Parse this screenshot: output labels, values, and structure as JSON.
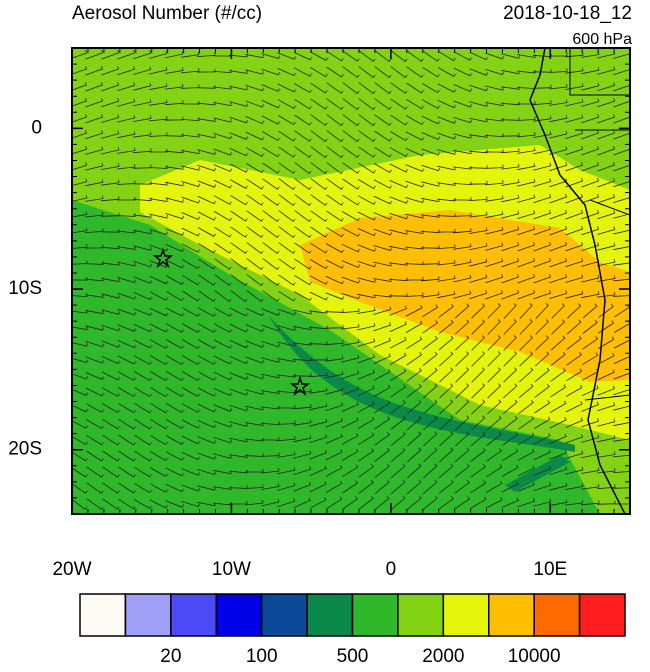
{
  "header": {
    "title": "Aerosol Number (#/cc)",
    "date": "2018-10-18_12",
    "level": "600 hPa"
  },
  "map": {
    "lonlim": [
      -20,
      15
    ],
    "latlim": [
      -24,
      5
    ],
    "lonticks": [
      {
        "value": -20,
        "label": "20W"
      },
      {
        "value": -10,
        "label": "10W"
      },
      0,
      {
        "value": 10,
        "label": "10E"
      }
    ],
    "latticks": [
      0,
      {
        "value": -10,
        "label": "10S"
      },
      {
        "value": -20,
        "label": "20S"
      }
    ]
  },
  "colorbar": {
    "colors": [
      "#fbfbf3",
      "#a0a0f8",
      "#4b4bf8",
      "#0000e6",
      "#0a4a96",
      "#0a8a48",
      "#2fb82a",
      "#84d214",
      "#e4f50a",
      "#ffbe00",
      "#ff6a00",
      "#ff1e1e"
    ],
    "labels": [
      "20",
      "100",
      "500",
      "2000",
      "10000"
    ]
  }
}
